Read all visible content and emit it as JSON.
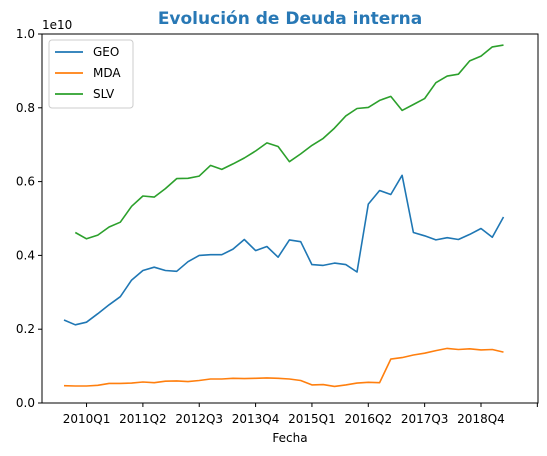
{
  "chart_data": {
    "type": "line",
    "title": "Evolución de Deuda interna",
    "title_color": "#2878b5",
    "xlabel": "Fecha",
    "ylabel": "",
    "y_offset_label": "1e10",
    "ylim": [
      0,
      10000000000
    ],
    "y_ticks": [
      0,
      2000000000,
      4000000000,
      6000000000,
      8000000000,
      10000000000
    ],
    "y_tick_labels": [
      "0.0",
      "0.2",
      "0.4",
      "0.6",
      "0.8",
      "1.0"
    ],
    "x_tick_labels": [
      "2010Q1",
      "2011Q2",
      "2012Q3",
      "2013Q4",
      "2015Q1",
      "2016Q2",
      "2017Q3",
      "2018Q4"
    ],
    "legend_position": "top-left",
    "grid": false,
    "x": [
      "2009Q3",
      "2009Q4",
      "2010Q1",
      "2010Q2",
      "2010Q3",
      "2010Q4",
      "2011Q1",
      "2011Q2",
      "2011Q3",
      "2011Q4",
      "2012Q1",
      "2012Q2",
      "2012Q3",
      "2012Q4",
      "2013Q1",
      "2013Q2",
      "2013Q3",
      "2013Q4",
      "2014Q1",
      "2014Q2",
      "2014Q3",
      "2014Q4",
      "2015Q1",
      "2015Q2",
      "2015Q3",
      "2015Q4",
      "2016Q1",
      "2016Q2",
      "2016Q3",
      "2016Q4",
      "2017Q1",
      "2017Q2",
      "2017Q3",
      "2017Q4",
      "2018Q1",
      "2018Q2",
      "2018Q3",
      "2018Q4",
      "2019Q1",
      "2019Q2"
    ],
    "series": [
      {
        "name": "GEO",
        "color": "#1f77b4",
        "values": [
          2250000000,
          2120000000,
          2190000000,
          2420000000,
          2660000000,
          2880000000,
          3330000000,
          3590000000,
          3680000000,
          3590000000,
          3570000000,
          3830000000,
          4000000000,
          4020000000,
          4020000000,
          4170000000,
          4430000000,
          4130000000,
          4240000000,
          3950000000,
          4420000000,
          4370000000,
          3750000000,
          3730000000,
          3790000000,
          3750000000,
          3550000000,
          5390000000,
          5760000000,
          5650000000,
          6170000000,
          4620000000,
          4530000000,
          4420000000,
          4480000000,
          4430000000,
          4570000000,
          4730000000,
          4490000000,
          5040000000
        ]
      },
      {
        "name": "MDA",
        "color": "#ff7f0e",
        "values": [
          470000000,
          460000000,
          460000000,
          480000000,
          530000000,
          530000000,
          540000000,
          570000000,
          550000000,
          590000000,
          600000000,
          580000000,
          610000000,
          650000000,
          650000000,
          670000000,
          660000000,
          670000000,
          680000000,
          670000000,
          650000000,
          610000000,
          490000000,
          500000000,
          450000000,
          490000000,
          540000000,
          560000000,
          550000000,
          1190000000,
          1230000000,
          1300000000,
          1350000000,
          1420000000,
          1480000000,
          1450000000,
          1470000000,
          1440000000,
          1450000000,
          1380000000
        ]
      },
      {
        "name": "SLV",
        "color": "#2ca02c",
        "values": [
          null,
          4620000000,
          4450000000,
          4550000000,
          4770000000,
          4900000000,
          5330000000,
          5610000000,
          5580000000,
          5810000000,
          6080000000,
          6090000000,
          6150000000,
          6440000000,
          6330000000,
          6480000000,
          6640000000,
          6830000000,
          7050000000,
          6950000000,
          6540000000,
          6750000000,
          6980000000,
          7170000000,
          7450000000,
          7780000000,
          7980000000,
          8010000000,
          8200000000,
          8310000000,
          7930000000,
          8090000000,
          8250000000,
          8680000000,
          8860000000,
          8910000000,
          9270000000,
          9400000000,
          9650000000,
          9700000000
        ]
      }
    ]
  }
}
